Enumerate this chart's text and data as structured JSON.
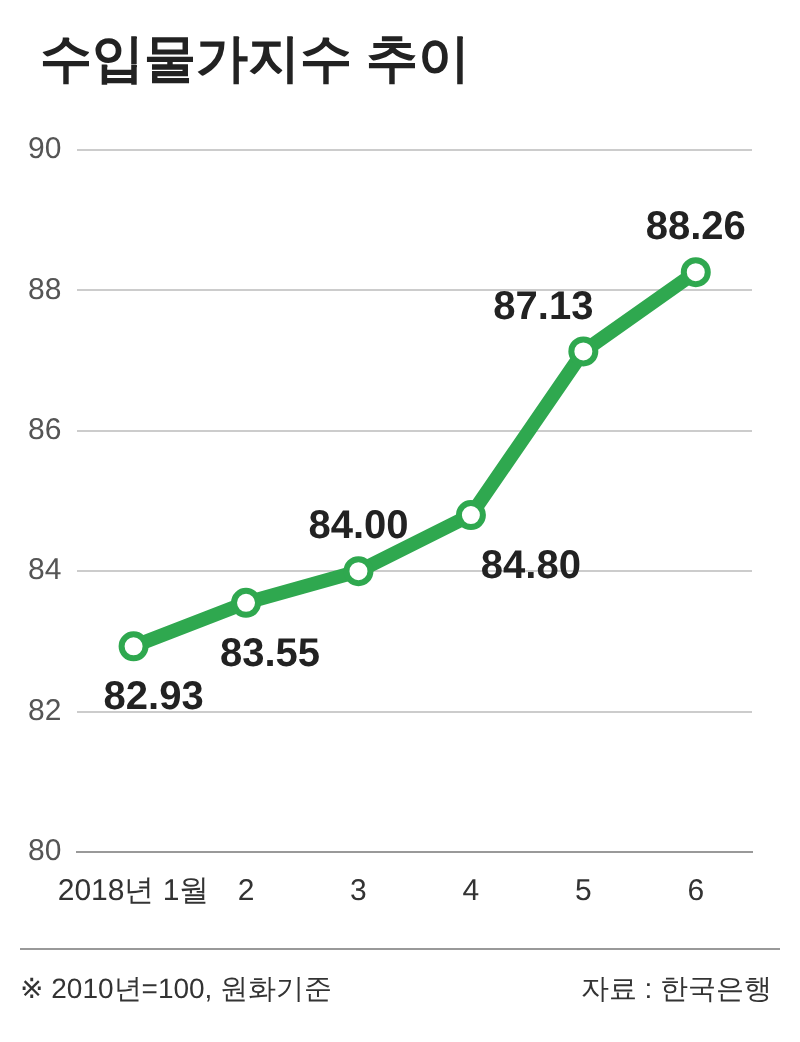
{
  "chart_data": {
    "type": "line",
    "title": "수입물가지수 추이",
    "categories": [
      "2018년 1월",
      "2",
      "3",
      "4",
      "5",
      "6"
    ],
    "series": [
      {
        "color": "#2fa84f",
        "values": [
          82.93,
          83.55,
          84.0,
          84.8,
          87.13,
          88.26
        ],
        "value_labels": [
          "82.93",
          "83.55",
          "84.00",
          "84.80",
          "87.13",
          "88.26"
        ]
      }
    ],
    "ylim": [
      80,
      90
    ],
    "yticks": [
      80,
      82,
      84,
      86,
      88,
      90
    ],
    "grid": "y",
    "marker": "circle",
    "line_style": "solid",
    "legend": false,
    "annotations": [
      "※ 2010년=100, 원화기준",
      "자료 : 한국은행"
    ]
  }
}
